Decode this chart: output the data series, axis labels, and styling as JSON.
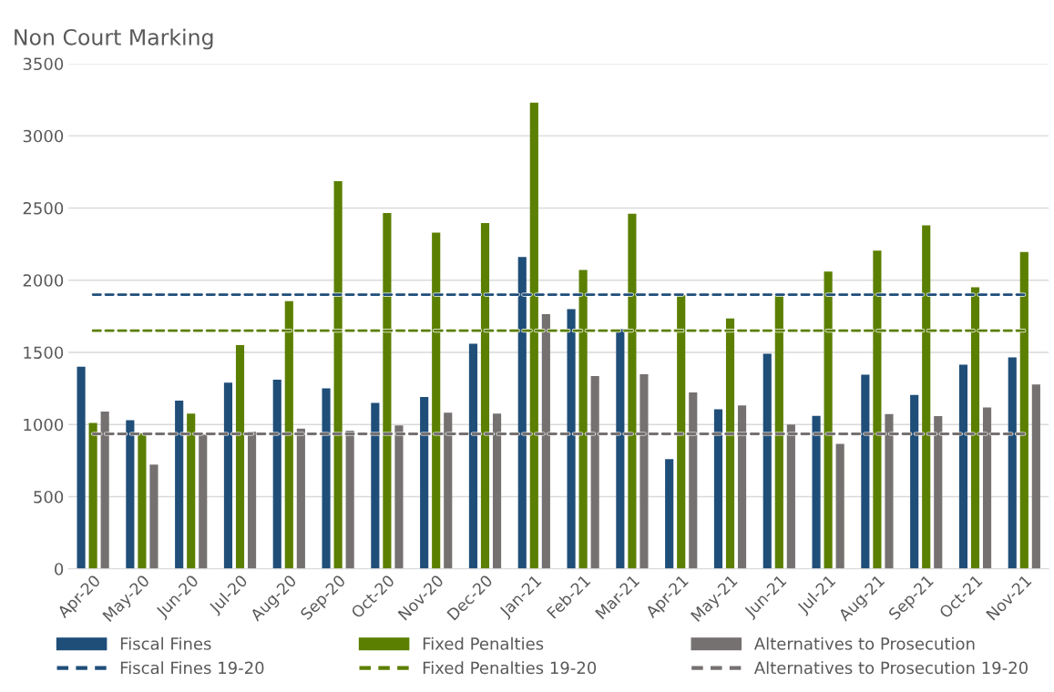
{
  "chart_data": {
    "type": "bar",
    "title": "Non Court Marking",
    "categories": [
      "Apr-20",
      "May-20",
      "Jun-20",
      "Jul-20",
      "Aug-20",
      "Sep-20",
      "Oct-20",
      "Nov-20",
      "Dec-20",
      "Jan-21",
      "Feb-21",
      "Mar-21",
      "Apr-21",
      "May-21",
      "Jun-21",
      "Jul-21",
      "Aug-21",
      "Sep-21",
      "Oct-21",
      "Nov-21"
    ],
    "series": [
      {
        "name": "Fiscal Fines",
        "color": "#1f4e79",
        "values": [
          1400,
          1030,
          1165,
          1290,
          1310,
          1250,
          1150,
          1190,
          1560,
          2160,
          1800,
          1660,
          760,
          1105,
          1490,
          1060,
          1345,
          1205,
          1415,
          1465
        ]
      },
      {
        "name": "Fixed Penalties",
        "color": "#5b7f00",
        "values": [
          1010,
          940,
          1075,
          1550,
          1855,
          2685,
          2465,
          2330,
          2395,
          3230,
          2070,
          2460,
          1895,
          1735,
          1900,
          2060,
          2205,
          2380,
          1950,
          2195
        ]
      },
      {
        "name": "Alternatives to Prosecution",
        "color": "#767171",
        "values": [
          1090,
          722,
          930,
          950,
          972,
          957,
          993,
          1082,
          1076,
          1765,
          1336,
          1348,
          1222,
          1132,
          1000,
          865,
          1072,
          1058,
          1118,
          1278
        ]
      },
      {
        "name": "Fiscal Fines 19-20",
        "type": "line",
        "line_style": "dashed",
        "color": "#1f4e79",
        "values": [
          1900,
          1900,
          1900,
          1900,
          1900,
          1900,
          1900,
          1900,
          1900,
          1900,
          1900,
          1900,
          1900,
          1900,
          1900,
          1900,
          1900,
          1900,
          1900,
          1900
        ]
      },
      {
        "name": "Fixed Penalties 19-20",
        "type": "line",
        "line_style": "dashed",
        "color": "#5b7f00",
        "values": [
          1650,
          1650,
          1650,
          1650,
          1650,
          1650,
          1650,
          1650,
          1650,
          1650,
          1650,
          1650,
          1650,
          1650,
          1650,
          1650,
          1650,
          1650,
          1650,
          1650
        ]
      },
      {
        "name": "Alternatives to Prosecution 19-20",
        "type": "line",
        "line_style": "dashed",
        "color": "#767171",
        "values": [
          935,
          935,
          935,
          935,
          935,
          935,
          935,
          935,
          935,
          935,
          935,
          935,
          935,
          935,
          935,
          935,
          935,
          935,
          935,
          935
        ]
      }
    ],
    "ylim": [
      0,
      3500
    ],
    "yticks": [
      0,
      500,
      1000,
      1500,
      2000,
      2500,
      3000,
      3500
    ],
    "grid": "y",
    "legend": "bottom"
  }
}
